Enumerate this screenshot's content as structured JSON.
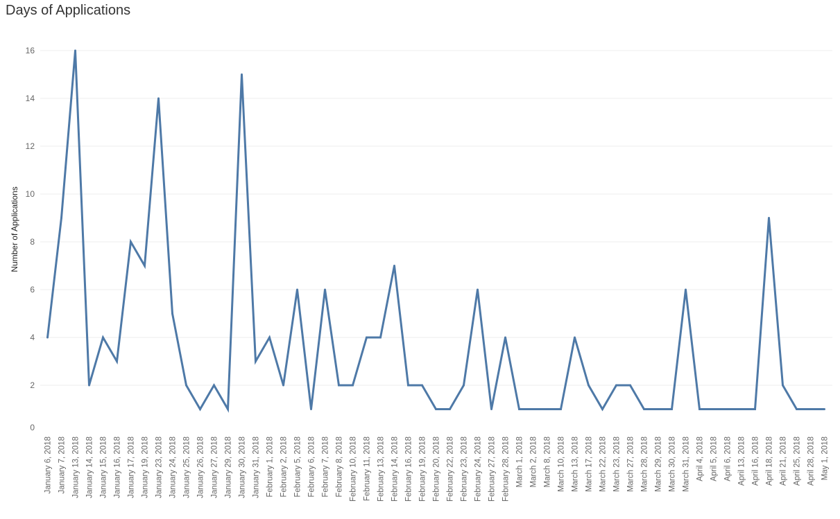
{
  "chart_data": {
    "type": "line",
    "title": "Days of Applications",
    "xlabel": "",
    "ylabel": "Number of Applications",
    "ylim": [
      0,
      16.5
    ],
    "yticks": [
      0,
      2,
      4,
      6,
      8,
      10,
      12,
      14,
      16
    ],
    "grid": true,
    "line_color": "#4e79a7",
    "categories": [
      "January 6, 2018",
      "January 7, 2018",
      "January 13, 2018",
      "January 14, 2018",
      "January 15, 2018",
      "January 16, 2018",
      "January 17, 2018",
      "January 19, 2018",
      "January 23, 2018",
      "January 24, 2018",
      "January 25, 2018",
      "January 26, 2018",
      "January 27, 2018",
      "January 29, 2018",
      "January 30, 2018",
      "January 31, 2018",
      "February 1, 2018",
      "February 2, 2018",
      "February 5, 2018",
      "February 6, 2018",
      "February 7, 2018",
      "February 8, 2018",
      "February 10, 2018",
      "February 11, 2018",
      "February 13, 2018",
      "February 14, 2018",
      "February 16, 2018",
      "February 19, 2018",
      "February 20, 2018",
      "February 22, 2018",
      "February 23, 2018",
      "February 24, 2018",
      "February 27, 2018",
      "February 28, 2018",
      "March 1, 2018",
      "March 2, 2018",
      "March 8, 2018",
      "March 10, 2018",
      "March 13, 2018",
      "March 17, 2018",
      "March 22, 2018",
      "March 23, 2018",
      "March 27, 2018",
      "March 28, 2018",
      "March 29, 2018",
      "March 30, 2018",
      "March 31, 2018",
      "April 4, 2018",
      "April 5, 2018",
      "April 6, 2018",
      "April 13, 2018",
      "April 16, 2018",
      "April 18, 2018",
      "April 21, 2018",
      "April 25, 2018",
      "April 28, 2018",
      "May 1, 2018"
    ],
    "series": [
      {
        "values": [
          4,
          9,
          16,
          2,
          4,
          3,
          8,
          7,
          14,
          5,
          2,
          1,
          2,
          1,
          15,
          3,
          4,
          2,
          6,
          1,
          6,
          2,
          2,
          4,
          4,
          7,
          2,
          2,
          1,
          1,
          2,
          6,
          1,
          4,
          1,
          1,
          1,
          1,
          4,
          2,
          1,
          2,
          2,
          1,
          1,
          1,
          6,
          1,
          1,
          1,
          1,
          1,
          9,
          2,
          1,
          1,
          1
        ]
      }
    ]
  }
}
